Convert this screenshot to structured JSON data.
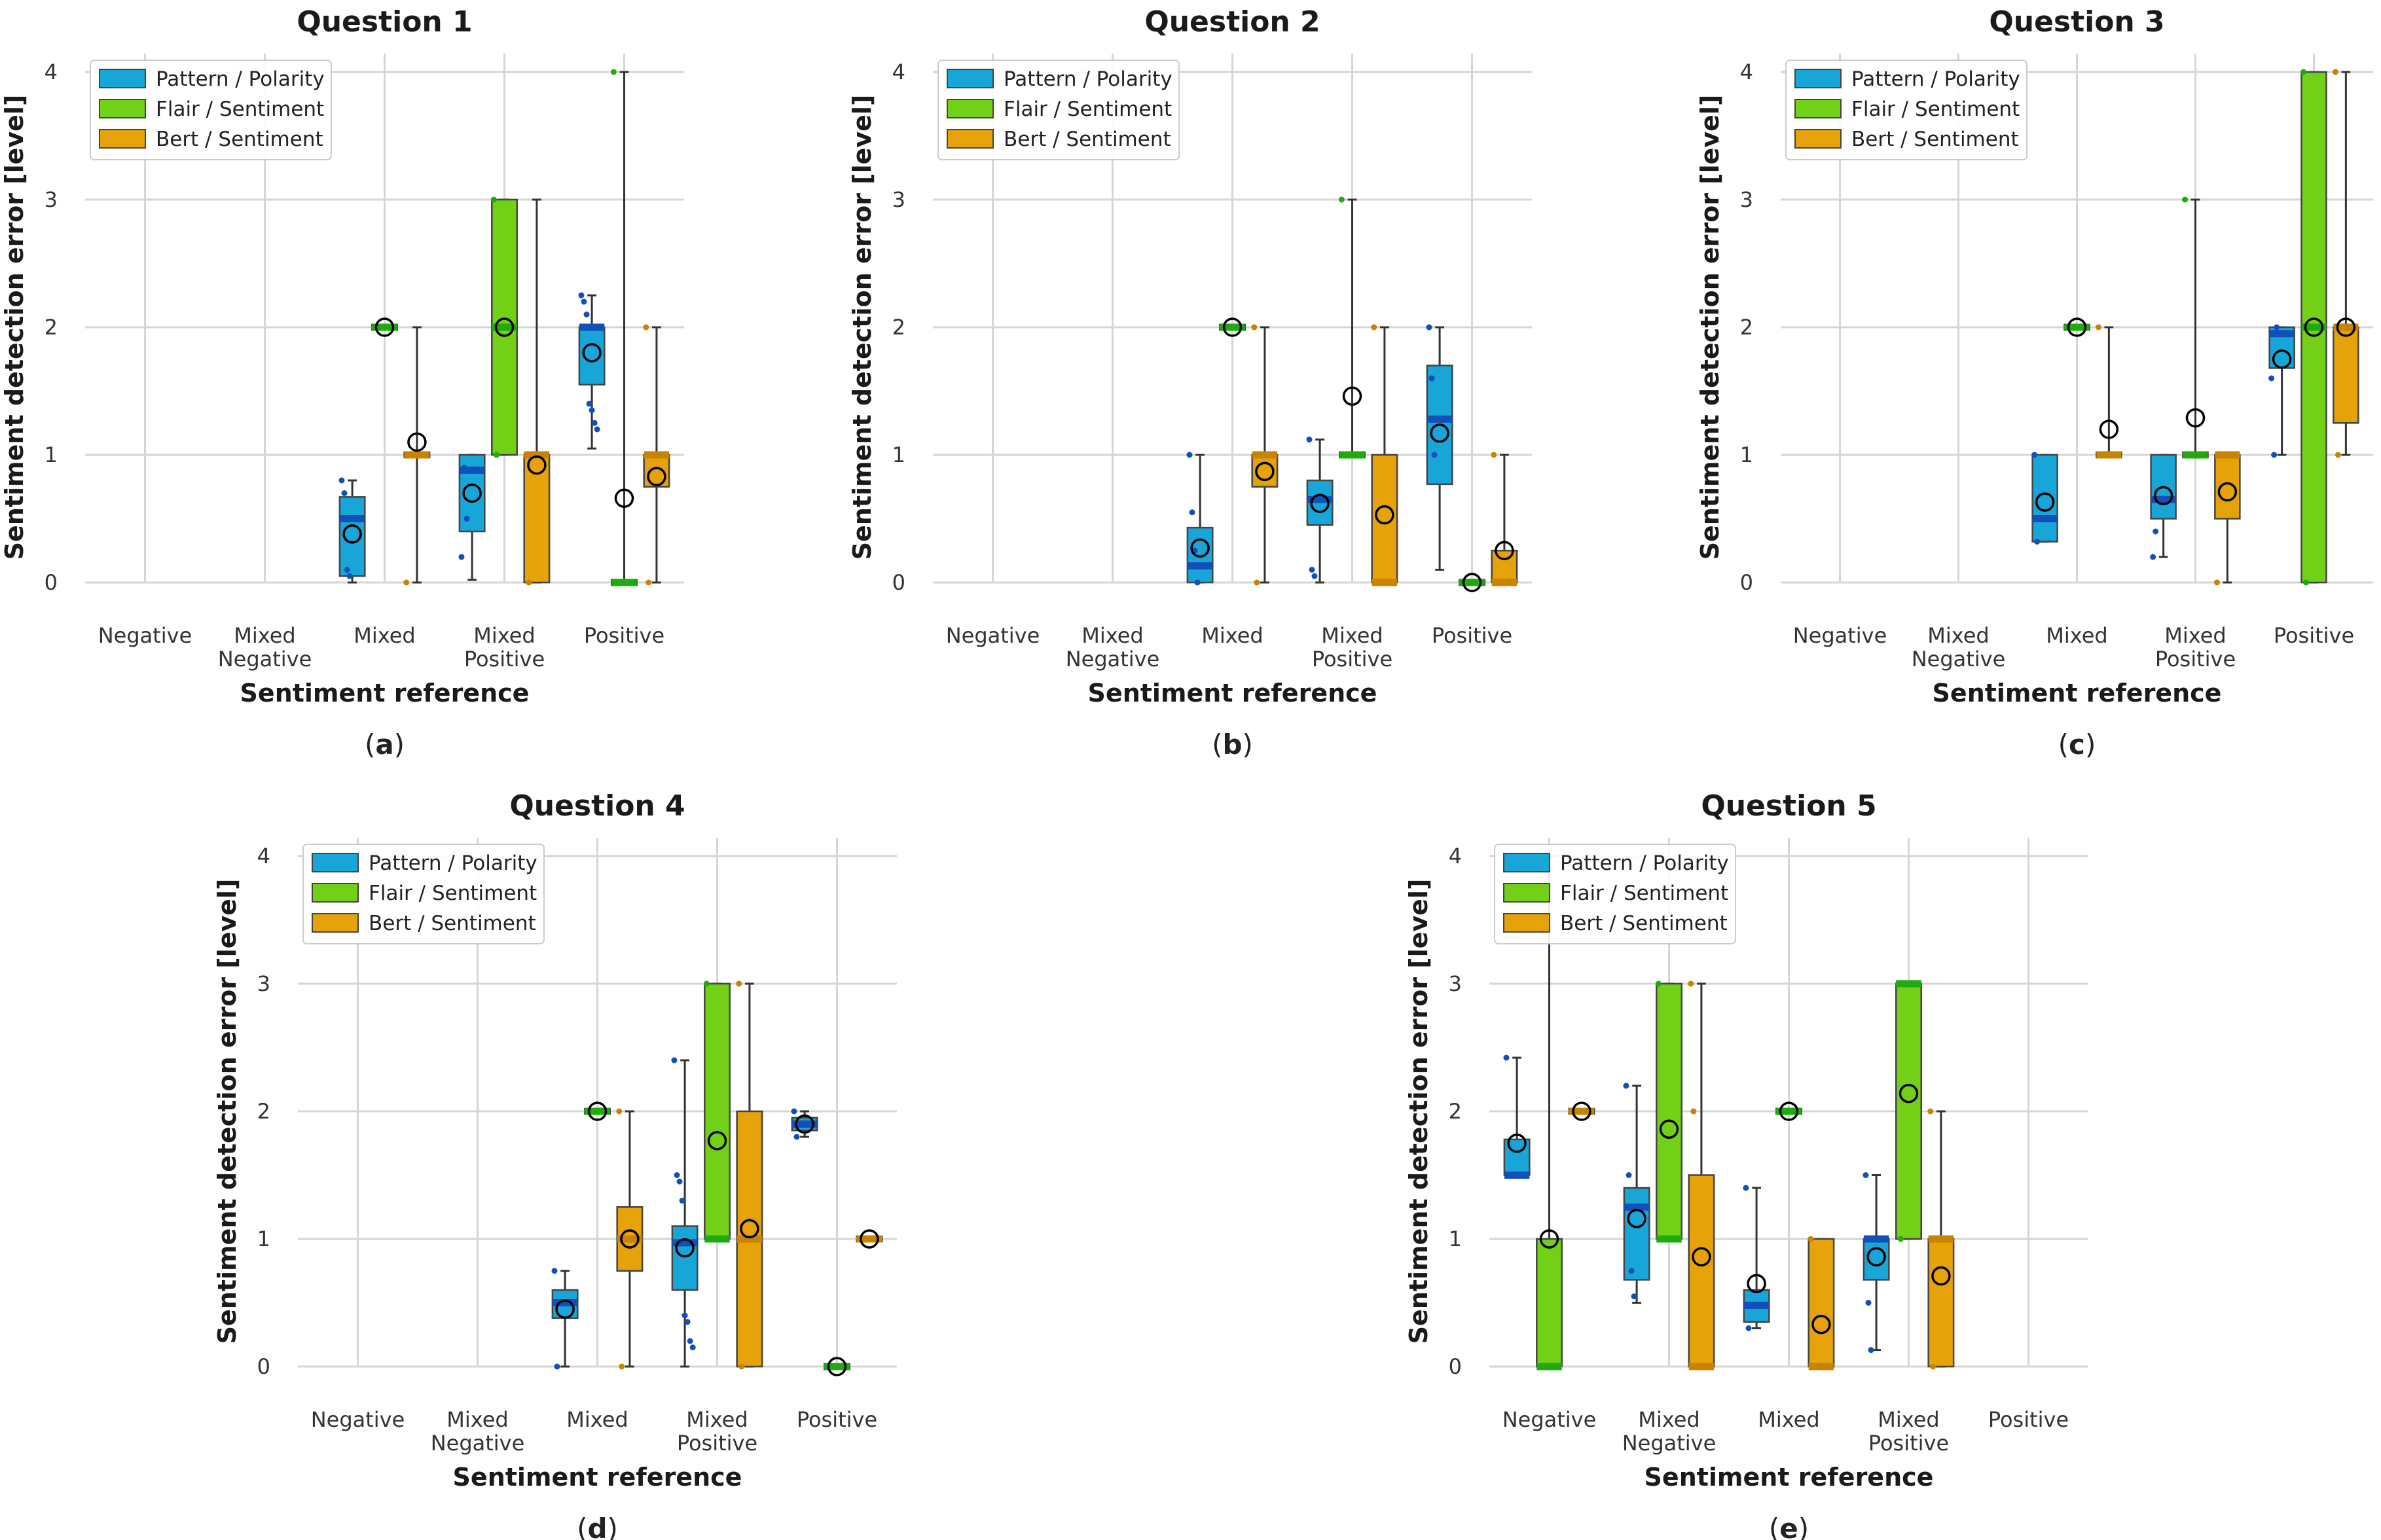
{
  "colors": {
    "pattern": "#18a5d8",
    "flair": "#72d116",
    "bert": "#e6a209",
    "pattern_dark": "#1150b8",
    "flair_dark": "#1faa10",
    "bert_dark": "#c88400",
    "grid": "#d6d6d6"
  },
  "chart_data": [
    {
      "type": "box",
      "title": "Question 1",
      "panel_label": "a",
      "xlabel": "Sentiment reference",
      "ylabel": "Sentiment detection error [level]",
      "ylim": [
        0,
        4
      ],
      "yticks": [
        "0",
        "1",
        "2",
        "3",
        "4"
      ],
      "categories": [
        [
          "Negative"
        ],
        [
          "Mixed",
          "Negative"
        ],
        [
          "Mixed"
        ],
        [
          "Mixed",
          "Positive"
        ],
        [
          "Positive"
        ]
      ],
      "legend": [
        "Pattern / Polarity",
        "Flair / Sentiment",
        "Bert / Sentiment"
      ],
      "series": [
        {
          "name": "Pattern / Polarity",
          "boxes": [
            null,
            null,
            {
              "min": 0,
              "q1": 0.05,
              "median": 0.5,
              "q3": 0.67,
              "max": 0.8,
              "mean": 0.38,
              "points": [
                0.8,
                0.7,
                0.1,
                0.05
              ]
            },
            {
              "min": 0.02,
              "q1": 0.4,
              "median": 0.88,
              "q3": 1.0,
              "max": 1.0,
              "mean": 0.7,
              "points": [
                0.2,
                0.9,
                0.5
              ]
            },
            {
              "min": 1.05,
              "q1": 1.55,
              "median": 2.0,
              "q3": 2.0,
              "max": 2.25,
              "mean": 1.8,
              "points": [
                2.25,
                2.2,
                2.1,
                1.4,
                1.35,
                1.25,
                1.2
              ]
            }
          ]
        },
        {
          "name": "Flair / Sentiment",
          "boxes": [
            null,
            null,
            {
              "min": 2,
              "q1": 2,
              "median": 2,
              "q3": 2,
              "max": 2,
              "mean": 2,
              "points": [
                2
              ]
            },
            {
              "min": 1,
              "q1": 1,
              "median": 2,
              "q3": 3,
              "max": 3,
              "mean": 2,
              "points": [
                3,
                1
              ]
            },
            {
              "min": 0,
              "q1": 0,
              "median": 0,
              "q3": 0,
              "max": 4,
              "mean": 0.66,
              "points": [
                4,
                0
              ]
            }
          ]
        },
        {
          "name": "Bert / Sentiment",
          "boxes": [
            null,
            null,
            {
              "min": 0,
              "q1": 1,
              "median": 1,
              "q3": 1,
              "max": 2,
              "mean": 1.1,
              "points": [
                0,
                1
              ]
            },
            {
              "min": 0,
              "q1": 0,
              "median": 1,
              "q3": 1,
              "max": 3,
              "mean": 0.92,
              "points": [
                1,
                0
              ]
            },
            {
              "min": 0,
              "q1": 0.75,
              "median": 1,
              "q3": 1,
              "max": 2,
              "mean": 0.83,
              "points": [
                2,
                0
              ]
            }
          ]
        }
      ]
    },
    {
      "type": "box",
      "title": "Question 2",
      "panel_label": "b",
      "xlabel": "Sentiment reference",
      "ylabel": "Sentiment detection error [level]",
      "ylim": [
        0,
        4
      ],
      "yticks": [
        "0",
        "1",
        "2",
        "3",
        "4"
      ],
      "categories": [
        [
          "Negative"
        ],
        [
          "Mixed",
          "Negative"
        ],
        [
          "Mixed"
        ],
        [
          "Mixed",
          "Positive"
        ],
        [
          "Positive"
        ]
      ],
      "legend": [
        "Pattern / Polarity",
        "Flair / Sentiment",
        "Bert / Sentiment"
      ],
      "series": [
        {
          "name": "Pattern / Polarity",
          "boxes": [
            null,
            null,
            {
              "min": 0,
              "q1": 0,
              "median": 0.13,
              "q3": 0.43,
              "max": 1.0,
              "mean": 0.27,
              "points": [
                1.0,
                0.55,
                0.25,
                0
              ]
            },
            {
              "min": 0,
              "q1": 0.45,
              "median": 0.65,
              "q3": 0.8,
              "max": 1.12,
              "mean": 0.62,
              "points": [
                1.12,
                0.1,
                0.05
              ]
            },
            {
              "min": 0.1,
              "q1": 0.77,
              "median": 1.28,
              "q3": 1.7,
              "max": 2.0,
              "mean": 1.17,
              "points": [
                2.0,
                1.6,
                1.0
              ]
            }
          ]
        },
        {
          "name": "Flair / Sentiment",
          "boxes": [
            null,
            null,
            {
              "min": 2,
              "q1": 2,
              "median": 2,
              "q3": 2,
              "max": 2,
              "mean": 2,
              "points": [
                2
              ]
            },
            {
              "min": 1,
              "q1": 1,
              "median": 1,
              "q3": 1,
              "max": 3,
              "mean": 1.46,
              "points": [
                3,
                1
              ]
            },
            {
              "min": 0,
              "q1": 0,
              "median": 0,
              "q3": 0,
              "max": 0,
              "mean": 0,
              "points": [
                0
              ]
            }
          ]
        },
        {
          "name": "Bert / Sentiment",
          "boxes": [
            null,
            null,
            {
              "min": 0,
              "q1": 0.75,
              "median": 1,
              "q3": 1,
              "max": 2,
              "mean": 0.87,
              "points": [
                2,
                0
              ]
            },
            {
              "min": 0,
              "q1": 0,
              "median": 0,
              "q3": 1,
              "max": 2,
              "mean": 0.53,
              "points": [
                2,
                0
              ]
            },
            {
              "min": 0,
              "q1": 0,
              "median": 0,
              "q3": 0.25,
              "max": 1,
              "mean": 0.25,
              "points": [
                1,
                0
              ]
            }
          ]
        }
      ]
    },
    {
      "type": "box",
      "title": "Question 3",
      "panel_label": "c",
      "xlabel": "Sentiment reference",
      "ylabel": "Sentiment detection error [level]",
      "ylim": [
        0,
        4
      ],
      "yticks": [
        "0",
        "1",
        "2",
        "3",
        "4"
      ],
      "categories": [
        [
          "Negative"
        ],
        [
          "Mixed",
          "Negative"
        ],
        [
          "Mixed"
        ],
        [
          "Mixed",
          "Positive"
        ],
        [
          "Positive"
        ]
      ],
      "legend": [
        "Pattern / Polarity",
        "Flair / Sentiment",
        "Bert / Sentiment"
      ],
      "series": [
        {
          "name": "Pattern / Polarity",
          "boxes": [
            null,
            null,
            {
              "min": 0.32,
              "q1": 0.32,
              "median": 0.5,
              "q3": 1.0,
              "max": 1.0,
              "mean": 0.63,
              "points": [
                1.0,
                0.32
              ]
            },
            {
              "min": 0.2,
              "q1": 0.5,
              "median": 0.65,
              "q3": 1.0,
              "max": 1.0,
              "mean": 0.68,
              "points": [
                0.2,
                0.4
              ]
            },
            {
              "min": 1.0,
              "q1": 1.68,
              "median": 1.95,
              "q3": 2.0,
              "max": 2.0,
              "mean": 1.75,
              "points": [
                1.6,
                1.0,
                2.0
              ]
            }
          ]
        },
        {
          "name": "Flair / Sentiment",
          "boxes": [
            null,
            null,
            {
              "min": 2,
              "q1": 2,
              "median": 2,
              "q3": 2,
              "max": 2,
              "mean": 2,
              "points": [
                2
              ]
            },
            {
              "min": 1,
              "q1": 1,
              "median": 1,
              "q3": 1,
              "max": 3,
              "mean": 1.29,
              "points": [
                3,
                1
              ]
            },
            {
              "min": 0,
              "q1": 0,
              "median": 2,
              "q3": 4,
              "max": 4,
              "mean": 2,
              "points": [
                4,
                0
              ]
            }
          ]
        },
        {
          "name": "Bert / Sentiment",
          "boxes": [
            null,
            null,
            {
              "min": 1,
              "q1": 1,
              "median": 1,
              "q3": 1,
              "max": 2,
              "mean": 1.2,
              "points": [
                2,
                1
              ]
            },
            {
              "min": 0,
              "q1": 0.5,
              "median": 1,
              "q3": 1,
              "max": 1,
              "mean": 0.71,
              "points": [
                0,
                1
              ]
            },
            {
              "min": 1,
              "q1": 1.25,
              "median": 2,
              "q3": 2,
              "max": 4,
              "mean": 2,
              "points": [
                4,
                1
              ]
            }
          ]
        }
      ]
    },
    {
      "type": "box",
      "title": "Question 4",
      "panel_label": "d",
      "xlabel": "Sentiment reference",
      "ylabel": "Sentiment detection error [level]",
      "ylim": [
        0,
        4
      ],
      "yticks": [
        "0",
        "1",
        "2",
        "3",
        "4"
      ],
      "categories": [
        [
          "Negative"
        ],
        [
          "Mixed",
          "Negative"
        ],
        [
          "Mixed"
        ],
        [
          "Mixed",
          "Positive"
        ],
        [
          "Positive"
        ]
      ],
      "legend": [
        "Pattern / Polarity",
        "Flair / Sentiment",
        "Bert / Sentiment"
      ],
      "series": [
        {
          "name": "Pattern / Polarity",
          "boxes": [
            null,
            null,
            {
              "min": 0,
              "q1": 0.38,
              "median": 0.5,
              "q3": 0.6,
              "max": 0.75,
              "mean": 0.45,
              "points": [
                0.75,
                0
              ]
            },
            {
              "min": 0,
              "q1": 0.6,
              "median": 0.97,
              "q3": 1.1,
              "max": 2.4,
              "mean": 0.93,
              "points": [
                2.4,
                1.5,
                1.45,
                1.3,
                0.4,
                0.35,
                0.2,
                0.15
              ]
            },
            {
              "min": 1.8,
              "q1": 1.85,
              "median": 1.9,
              "q3": 1.95,
              "max": 2.0,
              "mean": 1.9,
              "points": [
                2.0,
                1.8
              ]
            }
          ]
        },
        {
          "name": "Flair / Sentiment",
          "boxes": [
            null,
            null,
            {
              "min": 2,
              "q1": 2,
              "median": 2,
              "q3": 2,
              "max": 2,
              "mean": 2,
              "points": [
                2
              ]
            },
            {
              "min": 1,
              "q1": 1,
              "median": 1,
              "q3": 3,
              "max": 3,
              "mean": 1.77,
              "points": [
                3,
                1
              ]
            },
            {
              "min": 0,
              "q1": 0,
              "median": 0,
              "q3": 0,
              "max": 0,
              "mean": 0,
              "points": [
                0
              ]
            }
          ]
        },
        {
          "name": "Bert / Sentiment",
          "boxes": [
            null,
            null,
            {
              "min": 0,
              "q1": 0.75,
              "median": 1,
              "q3": 1.25,
              "max": 2,
              "mean": 1.0,
              "points": [
                2,
                0
              ]
            },
            {
              "min": 0,
              "q1": 0,
              "median": 1,
              "q3": 2,
              "max": 3,
              "mean": 1.08,
              "points": [
                3,
                0
              ]
            },
            {
              "min": 1,
              "q1": 1,
              "median": 1,
              "q3": 1,
              "max": 1,
              "mean": 1.0,
              "points": [
                1
              ]
            }
          ]
        }
      ]
    },
    {
      "type": "box",
      "title": "Question 5",
      "panel_label": "e",
      "xlabel": "Sentiment reference",
      "ylabel": "Sentiment detection error [level]",
      "ylim": [
        0,
        4
      ],
      "yticks": [
        "0",
        "1",
        "2",
        "3",
        "4"
      ],
      "categories": [
        [
          "Negative"
        ],
        [
          "Mixed",
          "Negative"
        ],
        [
          "Mixed"
        ],
        [
          "Mixed",
          "Positive"
        ],
        [
          "Positive"
        ]
      ],
      "legend": [
        "Pattern / Polarity",
        "Flair / Sentiment",
        "Bert / Sentiment"
      ],
      "series": [
        {
          "name": "Pattern / Polarity",
          "boxes": [
            {
              "min": 1.5,
              "q1": 1.5,
              "median": 1.5,
              "q3": 1.78,
              "max": 2.42,
              "mean": 1.75,
              "points": [
                2.42,
                1.5
              ]
            },
            {
              "min": 0.5,
              "q1": 0.68,
              "median": 1.25,
              "q3": 1.4,
              "max": 2.2,
              "mean": 1.16,
              "points": [
                2.2,
                1.5,
                0.75,
                0.55
              ]
            },
            {
              "min": 0.3,
              "q1": 0.35,
              "median": 0.48,
              "q3": 0.6,
              "max": 1.4,
              "mean": 0.65,
              "points": [
                1.4,
                0.3
              ]
            },
            {
              "min": 0.13,
              "q1": 0.68,
              "median": 1.0,
              "q3": 1.0,
              "max": 1.5,
              "mean": 0.86,
              "points": [
                1.5,
                0.5,
                0.13
              ]
            },
            null
          ]
        },
        {
          "name": "Flair / Sentiment",
          "boxes": [
            {
              "min": 0,
              "q1": 0,
              "median": 0,
              "q3": 1,
              "max": 4,
              "mean": 1.0,
              "points": [
                4,
                0
              ]
            },
            {
              "min": 1,
              "q1": 1,
              "median": 1,
              "q3": 3,
              "max": 3,
              "mean": 1.86,
              "points": [
                3,
                1
              ]
            },
            {
              "min": 2,
              "q1": 2,
              "median": 2,
              "q3": 2,
              "max": 2,
              "mean": 2,
              "points": [
                2
              ]
            },
            {
              "min": 1,
              "q1": 1,
              "median": 3,
              "q3": 3,
              "max": 3,
              "mean": 2.14,
              "points": [
                3,
                1
              ]
            },
            null
          ]
        },
        {
          "name": "Bert / Sentiment",
          "boxes": [
            {
              "min": 2,
              "q1": 2,
              "median": 2,
              "q3": 2,
              "max": 2,
              "mean": 2,
              "points": [
                2
              ]
            },
            {
              "min": 0,
              "q1": 0,
              "median": 0,
              "q3": 1.5,
              "max": 3,
              "mean": 0.86,
              "points": [
                3,
                2,
                0
              ]
            },
            {
              "min": 0,
              "q1": 0,
              "median": 0,
              "q3": 1,
              "max": 1,
              "mean": 0.33,
              "points": [
                1,
                0
              ]
            },
            {
              "min": 0,
              "q1": 0,
              "median": 1,
              "q3": 1,
              "max": 2,
              "mean": 0.71,
              "points": [
                2,
                0
              ]
            },
            null
          ]
        }
      ]
    }
  ]
}
